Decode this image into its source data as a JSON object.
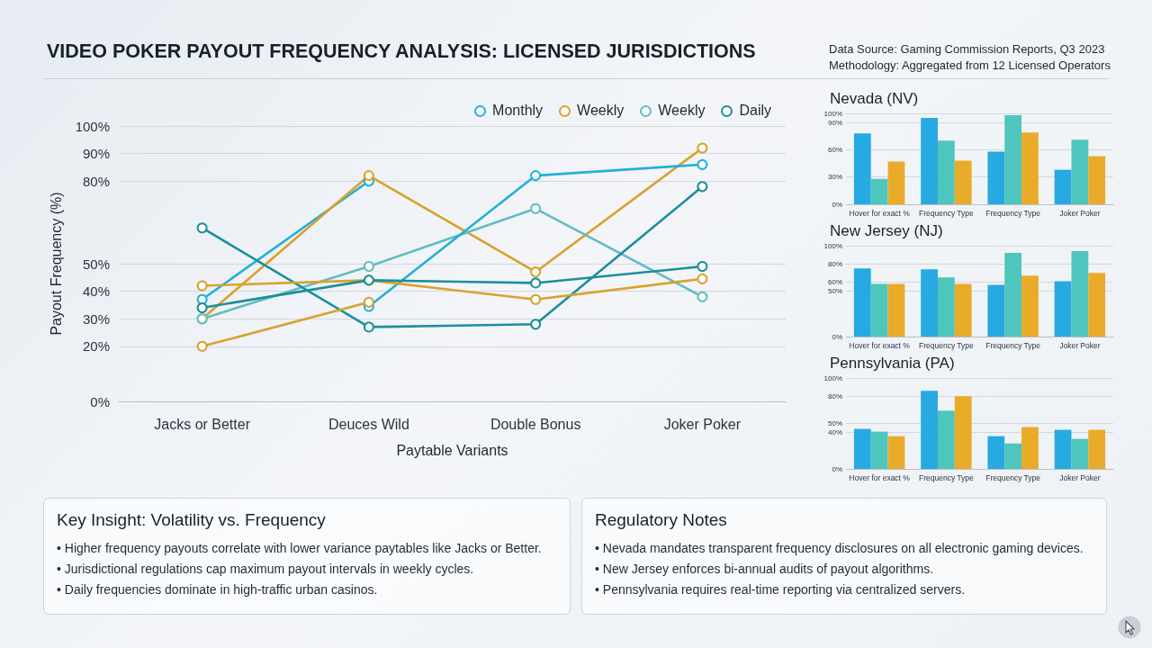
{
  "chart_data": [
    {
      "type": "line",
      "title": "VIDEO POKER PAYOUT FREQUENCY ANALYSIS: LICENSED JURISDICTIONS",
      "annotations": [
        "Data Source: Gaming Commission Reports, Q3 2023",
        "Methodology: Aggregated from 12 Licensed Operators"
      ],
      "xlabel": "Paytable Variants",
      "ylabel": "Payout Frequency (%)",
      "categories": [
        "Jacks or Better",
        "Deuces Wild",
        "Double Bonus",
        "Joker Poker"
      ],
      "series": [
        {
          "name": "Monthly",
          "color": "#22b0d8",
          "values": [
            37,
            80,
            null,
            null
          ]
        },
        {
          "name": "Weekly",
          "color": "#d9a12c",
          "values": [
            30,
            82,
            47,
            92
          ]
        },
        {
          "name": "Weekly",
          "color": "#62bcc4",
          "values": [
            30,
            49,
            70,
            38
          ]
        },
        {
          "name": "Daily",
          "color": "#1b8f9b",
          "values": [
            63,
            27,
            28,
            78
          ]
        },
        {
          "color": "#22b0d8",
          "values": [
            null,
            34.5,
            82,
            86
          ]
        },
        {
          "color": "#d9a12c",
          "values": [
            42,
            44,
            37,
            44.5
          ]
        },
        {
          "color": "#d9a12c",
          "values": [
            20,
            36,
            null,
            null
          ]
        },
        {
          "color": "#1b8f9b",
          "values": [
            34,
            44,
            43,
            49
          ]
        }
      ],
      "ylim": [
        0,
        100
      ],
      "yticks": [
        {
          "value": 0,
          "label": "0%"
        },
        {
          "value": 20,
          "label": "20%"
        },
        {
          "value": 30,
          "label": "30%"
        },
        {
          "value": 40,
          "label": "40%"
        },
        {
          "value": 50,
          "label": "50%"
        },
        {
          "value": 80,
          "label": "80%"
        },
        {
          "value": 90,
          "label": "90%"
        },
        {
          "value": 100,
          "label": "100%"
        }
      ],
      "grid": "y",
      "legend": "top right",
      "marker": "circle",
      "line_style": "solid"
    },
    {
      "type": "bar",
      "title": "Nevada (NV)",
      "categories": [
        "Hover for exact %",
        "Frequency Type",
        "Frequency Type",
        "Joker Poker"
      ],
      "series": [
        {
          "color": "#27a9e1",
          "values": [
            78,
            95,
            58,
            38
          ]
        },
        {
          "color": "#4fc6bd",
          "values": [
            28,
            70,
            98,
            71
          ]
        },
        {
          "color": "#e9ab2a",
          "values": [
            47,
            48,
            79,
            53
          ]
        }
      ],
      "ylim": [
        0,
        100
      ],
      "yticks": [
        {
          "value": 0,
          "label": "0%"
        },
        {
          "value": 30,
          "label": "30%"
        },
        {
          "value": 60,
          "label": "60%"
        },
        {
          "value": 90,
          "label": "90%"
        },
        {
          "value": 100,
          "label": "100%"
        }
      ],
      "grid": "y"
    },
    {
      "type": "bar",
      "title": "New Jersey (NJ)",
      "categories": [
        "Hover for exact %",
        "Frequency Type",
        "Frequency Type",
        "Joker Poker"
      ],
      "series": [
        {
          "color": "#27a9e1",
          "values": [
            75,
            74,
            57,
            61
          ]
        },
        {
          "color": "#4fc6bd",
          "values": [
            58,
            65,
            92,
            94
          ]
        },
        {
          "color": "#e9ab2a",
          "values": [
            58,
            58,
            67,
            70
          ]
        }
      ],
      "ylim": [
        0,
        100
      ],
      "yticks": [
        {
          "value": 0,
          "label": "0%"
        },
        {
          "value": 50,
          "label": "50%"
        },
        {
          "value": 60,
          "label": "60%"
        },
        {
          "value": 80,
          "label": "80%"
        },
        {
          "value": 100,
          "label": "100%"
        }
      ],
      "grid": "y"
    },
    {
      "type": "bar",
      "title": "Pennsylvania (PA)",
      "categories": [
        "Hover for exact %",
        "Frequency Type",
        "Frequency Type",
        "Joker Poker"
      ],
      "series": [
        {
          "color": "#27a9e1",
          "values": [
            44,
            86,
            36,
            43
          ]
        },
        {
          "color": "#4fc6bd",
          "values": [
            41,
            64,
            28,
            33
          ]
        },
        {
          "color": "#e9ab2a",
          "values": [
            36,
            80,
            46,
            43
          ]
        }
      ],
      "ylim": [
        0,
        100
      ],
      "yticks": [
        {
          "value": 0,
          "label": "0%"
        },
        {
          "value": 40,
          "label": "40%"
        },
        {
          "value": 50,
          "label": "50%"
        },
        {
          "value": 80,
          "label": "80%"
        },
        {
          "value": 100,
          "label": "100%"
        }
      ],
      "grid": "y"
    },
    {
      "type": "other",
      "title": "Key Insight: Volatility vs. Frequency",
      "annotations": [
        "• Higher frequency payouts correlate with lower variance paytables like Jacks or Better.",
        "• Jurisdictional regulations cap maximum payout intervals in weekly cycles.",
        "• Daily frequencies dominate in high-traffic urban casinos."
      ]
    },
    {
      "type": "other",
      "title": "Regulatory Notes",
      "annotations": [
        "• Nevada mandates transparent frequency disclosures on all electronic gaming devices.",
        "• New Jersey enforces bi-annual audits of payout algorithms.",
        "• Pennsylvania requires real-time reporting via centralized servers."
      ]
    }
  ]
}
